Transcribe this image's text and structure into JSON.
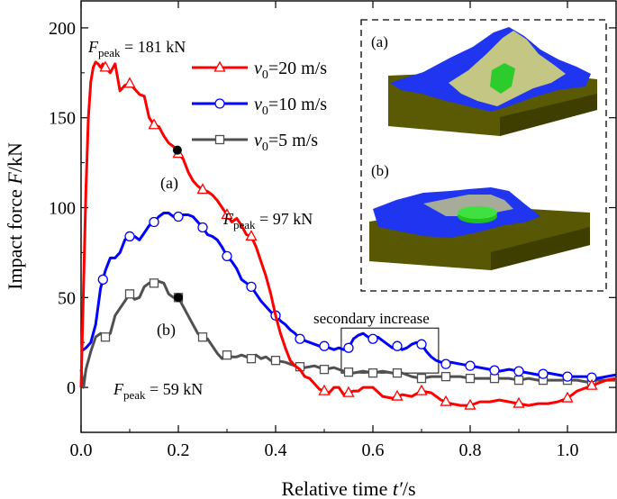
{
  "chart_data": {
    "type": "line",
    "xlabel_pre": "Relative time ",
    "xlabel_var": "t′",
    "xlabel_unit": "/s",
    "ylabel_pre": "Impact force ",
    "ylabel_var": "F",
    "ylabel_unit": "/kN",
    "xlim": [
      0,
      1.1
    ],
    "ylim": [
      -25,
      215
    ],
    "xticks": [
      0.0,
      0.2,
      0.4,
      0.6,
      0.8,
      1.0
    ],
    "xtick_labels": [
      "0.0",
      "0.2",
      "0.4",
      "0.6",
      "0.8",
      "1.0"
    ],
    "yticks": [
      0,
      50,
      100,
      150,
      200
    ],
    "ytick_labels": [
      "0",
      "50",
      "100",
      "150",
      "200"
    ],
    "grid": false,
    "legend_position": "top-center",
    "series": [
      {
        "name_var": "v",
        "name_sub": "0",
        "name_rest": "=20 m/s",
        "color": "#ff0000",
        "marker": "triangle",
        "x": [
          0.0,
          0.005,
          0.01,
          0.015,
          0.02,
          0.025,
          0.03,
          0.035,
          0.04,
          0.045,
          0.05,
          0.06,
          0.07,
          0.08,
          0.09,
          0.1,
          0.11,
          0.12,
          0.13,
          0.14,
          0.15,
          0.16,
          0.17,
          0.18,
          0.19,
          0.2,
          0.21,
          0.22,
          0.23,
          0.24,
          0.25,
          0.26,
          0.27,
          0.28,
          0.29,
          0.3,
          0.31,
          0.32,
          0.33,
          0.34,
          0.35,
          0.36,
          0.37,
          0.38,
          0.39,
          0.4,
          0.41,
          0.42,
          0.43,
          0.44,
          0.45,
          0.46,
          0.47,
          0.48,
          0.49,
          0.5,
          0.51,
          0.52,
          0.53,
          0.54,
          0.55,
          0.56,
          0.57,
          0.58,
          0.6,
          0.62,
          0.64,
          0.66,
          0.68,
          0.7,
          0.72,
          0.74,
          0.76,
          0.78,
          0.8,
          0.82,
          0.84,
          0.86,
          0.88,
          0.9,
          0.92,
          0.94,
          0.96,
          0.98,
          1.0,
          1.02,
          1.04,
          1.06,
          1.08,
          1.1
        ],
        "y": [
          0,
          55,
          110,
          150,
          170,
          178,
          181,
          180,
          178,
          180,
          178,
          175,
          180,
          165,
          168,
          169,
          166,
          163,
          162,
          150,
          146,
          145,
          140,
          136,
          134,
          130,
          127,
          120,
          115,
          112,
          110,
          109,
          107,
          104,
          100,
          96,
          92,
          94,
          90,
          85,
          84,
          78,
          70,
          62,
          52,
          40,
          30,
          22,
          15,
          12,
          10,
          6,
          5,
          2,
          -1,
          -2,
          -3,
          0,
          0,
          -4,
          -3,
          -2,
          -2,
          0,
          0,
          -5,
          -6,
          -4,
          -5,
          -2,
          -3,
          -7,
          -9,
          -10,
          -10,
          -8,
          -8,
          -7,
          -8,
          -9,
          -10,
          -9,
          -9,
          -8,
          -6,
          -2,
          0,
          2,
          4,
          5
        ],
        "markers": [
          0.05,
          0.1,
          0.15,
          0.2,
          0.25,
          0.3,
          0.35,
          0.5,
          0.55,
          0.65,
          0.7,
          0.75,
          0.8,
          0.9,
          1.0,
          1.05
        ]
      },
      {
        "name_var": "v",
        "name_sub": "0",
        "name_rest": "=10 m/s",
        "color": "#0000ff",
        "marker": "circle",
        "x": [
          0.0,
          0.005,
          0.01,
          0.02,
          0.03,
          0.04,
          0.05,
          0.06,
          0.07,
          0.08,
          0.09,
          0.1,
          0.11,
          0.12,
          0.13,
          0.14,
          0.15,
          0.16,
          0.17,
          0.18,
          0.19,
          0.2,
          0.21,
          0.22,
          0.23,
          0.24,
          0.25,
          0.26,
          0.27,
          0.28,
          0.29,
          0.3,
          0.31,
          0.32,
          0.33,
          0.34,
          0.35,
          0.36,
          0.37,
          0.38,
          0.39,
          0.4,
          0.41,
          0.42,
          0.43,
          0.44,
          0.45,
          0.46,
          0.47,
          0.48,
          0.49,
          0.5,
          0.51,
          0.52,
          0.53,
          0.54,
          0.55,
          0.56,
          0.57,
          0.58,
          0.59,
          0.6,
          0.61,
          0.62,
          0.63,
          0.64,
          0.65,
          0.66,
          0.67,
          0.68,
          0.69,
          0.7,
          0.71,
          0.72,
          0.73,
          0.74,
          0.75,
          0.76,
          0.78,
          0.8,
          0.82,
          0.84,
          0.86,
          0.88,
          0.9,
          0.92,
          0.94,
          0.96,
          0.98,
          1.0,
          1.02,
          1.04,
          1.06,
          1.08,
          1.1
        ],
        "y": [
          20,
          21,
          22,
          25,
          35,
          55,
          65,
          72,
          72,
          75,
          82,
          84,
          84,
          82,
          86,
          90,
          92,
          95,
          97,
          97,
          95,
          95,
          96,
          96,
          95,
          92,
          89,
          85,
          84,
          82,
          78,
          73,
          70,
          66,
          60,
          58,
          56,
          52,
          48,
          45,
          42,
          40,
          37,
          35,
          32,
          30,
          27,
          26,
          25,
          24,
          23,
          23,
          22,
          21,
          22,
          21,
          22,
          27,
          29,
          30,
          28,
          27,
          28,
          26,
          24,
          22,
          23,
          21,
          22,
          24,
          25,
          24,
          20,
          17,
          15,
          14,
          13,
          14,
          13,
          12,
          11,
          10,
          9,
          10,
          9,
          8,
          7,
          8,
          7,
          6,
          6,
          6,
          5,
          6,
          7
        ],
        "markers": [
          0.045,
          0.1,
          0.15,
          0.2,
          0.25,
          0.3,
          0.35,
          0.4,
          0.45,
          0.5,
          0.55,
          0.6,
          0.65,
          0.7,
          0.75,
          0.8,
          0.85,
          0.9,
          0.95,
          1.0,
          1.05
        ]
      },
      {
        "name_var": "v",
        "name_sub": "0",
        "name_rest": "=5 m/s",
        "color": "#505050",
        "marker": "square",
        "x": [
          0.0,
          0.005,
          0.01,
          0.02,
          0.03,
          0.04,
          0.05,
          0.06,
          0.07,
          0.08,
          0.09,
          0.1,
          0.11,
          0.12,
          0.13,
          0.14,
          0.15,
          0.16,
          0.17,
          0.18,
          0.19,
          0.2,
          0.21,
          0.22,
          0.23,
          0.24,
          0.25,
          0.26,
          0.27,
          0.28,
          0.29,
          0.3,
          0.31,
          0.32,
          0.33,
          0.34,
          0.35,
          0.36,
          0.37,
          0.38,
          0.39,
          0.4,
          0.42,
          0.44,
          0.46,
          0.48,
          0.5,
          0.52,
          0.54,
          0.56,
          0.58,
          0.6,
          0.62,
          0.64,
          0.66,
          0.68,
          0.7,
          0.72,
          0.74,
          0.76,
          0.78,
          0.8,
          0.82,
          0.84,
          0.86,
          0.88,
          0.9,
          0.92,
          0.94,
          0.96,
          0.98,
          1.0,
          1.02,
          1.04,
          1.06,
          1.08,
          1.1
        ],
        "y": [
          10,
          0,
          10,
          20,
          28,
          30,
          28,
          30,
          40,
          44,
          48,
          52,
          49,
          50,
          56,
          58,
          58,
          59,
          58,
          52,
          50,
          50,
          45,
          40,
          35,
          30,
          28,
          27,
          23,
          19,
          16,
          18,
          17,
          17,
          18,
          17,
          16,
          18,
          16,
          17,
          15,
          15,
          14,
          12,
          11,
          12,
          10,
          11,
          9,
          8,
          9,
          8,
          9,
          8,
          8,
          6,
          5,
          6,
          6,
          6,
          6,
          5,
          5,
          5,
          5,
          5,
          4,
          5,
          4,
          4,
          4,
          4,
          4,
          3,
          4,
          4,
          4
        ],
        "markers": [
          0.05,
          0.1,
          0.15,
          0.2,
          0.25,
          0.3,
          0.35,
          0.4,
          0.45,
          0.5,
          0.55,
          0.6,
          0.65,
          0.7,
          0.75,
          0.8,
          0.85,
          0.9,
          0.95,
          1.0,
          1.05
        ]
      }
    ],
    "points": [
      {
        "x": 0.198,
        "y": 132
      },
      {
        "x": 0.2,
        "y": 50
      }
    ],
    "annotations": {
      "peak1": {
        "pre": "F",
        "sub": "peak",
        "rest": " = 181 kN"
      },
      "peak2": {
        "pre": "F",
        "sub": "peak",
        "rest": " = 97 kN"
      },
      "peak3": {
        "pre": "F",
        "sub": "peak",
        "rest": " = 59 kN"
      },
      "label_a": "(a)",
      "label_b": "(b)",
      "secondary": "secondary increase",
      "secondary_box": {
        "x0": 0.535,
        "x1": 0.735,
        "y0": 8,
        "y1": 33
      }
    },
    "inset": {
      "label_a": "(a)",
      "label_b": "(b)",
      "colors": {
        "ground": "#4a4a00",
        "ground_top": "#6b6b05",
        "particles_blue": "#1430ff",
        "particles_yellow": "#e8e85a",
        "cylinder": "#22cc22"
      }
    }
  }
}
